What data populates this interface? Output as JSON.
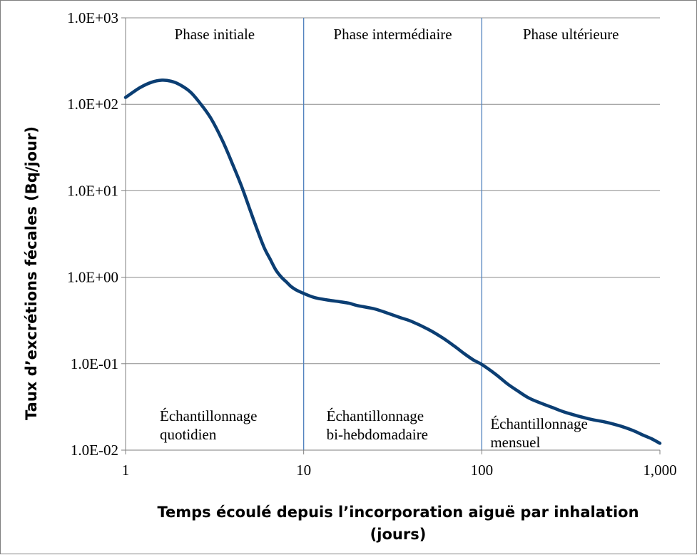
{
  "chart_data": {
    "type": "line",
    "xlabel_lines": [
      "Temps écoulé depuis l’incorporation aiguë par inhalation",
      "(jours)"
    ],
    "ylabel": "Taux d’excrétions fécales (Bq/jour)",
    "x_scale": "log",
    "y_scale": "log",
    "xlim": [
      1,
      1000
    ],
    "ylim": [
      0.01,
      1000
    ],
    "x_ticks": [
      1,
      10,
      100,
      1000
    ],
    "x_tick_labels": [
      "1",
      "10",
      "100",
      "1,000"
    ],
    "y_ticks": [
      0.01,
      0.1,
      1,
      10,
      100,
      1000
    ],
    "y_tick_labels": [
      "1.0E-02",
      "1.0E-01",
      "1.0E+00",
      "1.0E+01",
      "1.0E+02",
      "1.0E+03"
    ],
    "grid": "horizontal",
    "legend": "none",
    "phase_dividers_x": [
      10,
      100
    ],
    "phases": [
      {
        "title": "Phase initiale",
        "sampling": [
          "Échantillonnage",
          "quotidien"
        ]
      },
      {
        "title": "Phase intermédiaire",
        "sampling": [
          "Échantillonnage",
          "bi-hebdomadaire"
        ]
      },
      {
        "title": "Phase ultérieure",
        "sampling": [
          "Échantillonnage",
          "mensuel"
        ]
      }
    ],
    "series": [
      {
        "color": "#0b3e73",
        "x": [
          1,
          1.2,
          1.4,
          1.6,
          1.8,
          2,
          2.3,
          2.6,
          3,
          3.5,
          4,
          4.5,
          5,
          5.5,
          6,
          6.5,
          7,
          7.5,
          8,
          8.5,
          9,
          9.5,
          10,
          11,
          12,
          14,
          16,
          18,
          20,
          25,
          30,
          35,
          40,
          50,
          60,
          70,
          80,
          90,
          100,
          120,
          140,
          160,
          180,
          200,
          250,
          300,
          400,
          500,
          600,
          700,
          800,
          900,
          1000
        ],
        "y": [
          120,
          155,
          180,
          190,
          185,
          170,
          140,
          105,
          70,
          38,
          20,
          11,
          6,
          3.5,
          2.2,
          1.6,
          1.2,
          1.0,
          0.88,
          0.78,
          0.72,
          0.68,
          0.65,
          0.6,
          0.57,
          0.54,
          0.52,
          0.5,
          0.47,
          0.43,
          0.38,
          0.34,
          0.31,
          0.25,
          0.2,
          0.16,
          0.13,
          0.11,
          0.098,
          0.075,
          0.058,
          0.048,
          0.041,
          0.037,
          0.031,
          0.027,
          0.023,
          0.021,
          0.019,
          0.017,
          0.015,
          0.0135,
          0.012
        ]
      }
    ]
  }
}
